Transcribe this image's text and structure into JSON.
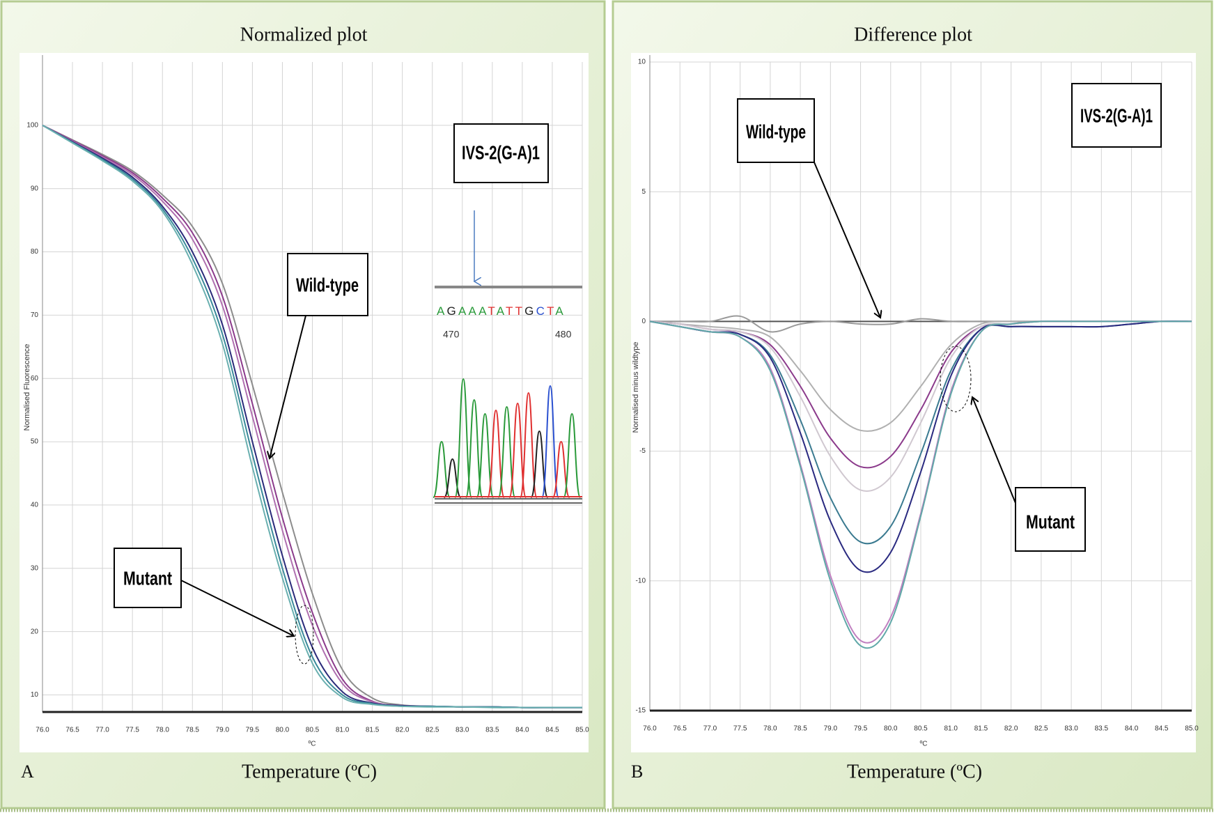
{
  "chart_data": [
    {
      "type": "line",
      "title": "Normalized plot",
      "panel_label": "A",
      "x_label": "Temperature (ºC)",
      "x_unit_label": "ºC",
      "y_label": "Normalised Fluorescence",
      "annotation_wild_type": "Wild-type",
      "annotation_mutant": "Mutant",
      "mutation": "IVS-2(G-A)1",
      "sequence": "AGAAATATTGCTA",
      "sequence_positions": [
        470,
        480
      ],
      "x": [
        76,
        76.5,
        77,
        77.5,
        78,
        78.5,
        79,
        79.5,
        80,
        80.5,
        81,
        81.5,
        82,
        82.5,
        83,
        83.5,
        84,
        84.5,
        85
      ],
      "xlim": [
        76,
        85
      ],
      "xticks": [
        {
          "value": 76,
          "label": "76.0"
        },
        {
          "value": 76.5,
          "label": "76.5"
        },
        {
          "value": 77,
          "label": "77.0"
        },
        {
          "value": 77.5,
          "label": "77.5"
        },
        {
          "value": 78,
          "label": "78.0"
        },
        {
          "value": 78.5,
          "label": "78.5"
        },
        {
          "value": 79,
          "label": "79.0"
        },
        {
          "value": 79.5,
          "label": "79.5"
        },
        {
          "value": 80,
          "label": "80.0"
        },
        {
          "value": 80.5,
          "label": "80.5"
        },
        {
          "value": 81,
          "label": "81.0"
        },
        {
          "value": 81.5,
          "label": "81.5"
        },
        {
          "value": 82,
          "label": "82.0"
        },
        {
          "value": 82.5,
          "label": "82.5"
        },
        {
          "value": 83,
          "label": "83.0"
        },
        {
          "value": 83.5,
          "label": "83.5"
        },
        {
          "value": 84,
          "label": "84.0"
        },
        {
          "value": 84.5,
          "label": "84.5"
        },
        {
          "value": 85,
          "label": "85.0"
        }
      ],
      "ylim": [
        7.3,
        110
      ],
      "yticks": [
        10,
        20,
        30,
        40,
        50,
        60,
        70,
        80,
        90,
        100
      ],
      "grid": true,
      "series": [
        {
          "color": "#8c8c8c",
          "values": [
            100,
            97.7,
            95.4,
            92.8,
            89,
            84,
            75,
            59,
            42,
            26,
            14,
            9.5,
            8.4,
            8.2,
            8.1,
            8.1,
            8,
            8,
            8
          ]
        },
        {
          "color": "#8b3a8b",
          "values": [
            100,
            97.6,
            95.2,
            92.5,
            88.5,
            83,
            73,
            56,
            38,
            23,
            12.5,
            9,
            8.3,
            8.2,
            8.1,
            8.1,
            8,
            8,
            8
          ]
        },
        {
          "color": "#b070b0",
          "values": [
            100,
            97.5,
            95,
            92.2,
            88,
            82,
            71.5,
            54,
            36,
            21,
            11.8,
            8.9,
            8.3,
            8.2,
            8.1,
            8.1,
            8,
            8,
            8
          ]
        },
        {
          "color": "#2a2a7a",
          "values": [
            100,
            97.4,
            94.8,
            91.8,
            87.2,
            80,
            68.5,
            50,
            32,
            17.5,
            10.5,
            8.7,
            8.3,
            8.2,
            8.1,
            8.1,
            8,
            8,
            8
          ]
        },
        {
          "color": "#3a8a9a",
          "values": [
            100,
            97.3,
            94.6,
            91.5,
            86.8,
            79,
            67,
            48,
            30,
            16,
            10,
            8.6,
            8.2,
            8.2,
            8.1,
            8.1,
            8,
            8,
            8
          ]
        },
        {
          "color": "#6ab0b0",
          "values": [
            100,
            97.2,
            94.4,
            91.2,
            86.4,
            78,
            65.5,
            46,
            28.5,
            15,
            9.6,
            8.5,
            8.2,
            8.1,
            8.1,
            8,
            8,
            8,
            8
          ]
        }
      ]
    },
    {
      "type": "line",
      "title": "Difference plot",
      "panel_label": "B",
      "x_label": "Temperature (ºC)",
      "x_unit_label": "ºC",
      "y_label": "Normalised minus wildtype",
      "annotation_wild_type": "Wild-type",
      "annotation_mutant": "Mutant",
      "mutation": "IVS-2(G-A)1",
      "x": [
        76,
        76.5,
        77,
        77.5,
        78,
        78.5,
        79,
        79.5,
        80,
        80.5,
        81,
        81.5,
        82,
        82.5,
        83,
        83.5,
        84,
        84.5,
        85
      ],
      "xlim": [
        76,
        85
      ],
      "xticks": [
        {
          "value": 76,
          "label": "76.0"
        },
        {
          "value": 76.5,
          "label": "76.5"
        },
        {
          "value": 77,
          "label": "77.0"
        },
        {
          "value": 77.5,
          "label": "77.5"
        },
        {
          "value": 78,
          "label": "78.0"
        },
        {
          "value": 78.5,
          "label": "78.5"
        },
        {
          "value": 79,
          "label": "79.0"
        },
        {
          "value": 79.5,
          "label": "79.5"
        },
        {
          "value": 80,
          "label": "80.0"
        },
        {
          "value": 80.5,
          "label": "80.5"
        },
        {
          "value": 81,
          "label": "81.0"
        },
        {
          "value": 81.5,
          "label": "81.5"
        },
        {
          "value": 82,
          "label": "82.0"
        },
        {
          "value": 82.5,
          "label": "82.5"
        },
        {
          "value": 83,
          "label": "83.0"
        },
        {
          "value": 83.5,
          "label": "83.5"
        },
        {
          "value": 84,
          "label": "84.0"
        },
        {
          "value": 84.5,
          "label": "84.5"
        },
        {
          "value": 85,
          "label": "85.0"
        }
      ],
      "ylim": [
        -15,
        10
      ],
      "yticks": [
        -15,
        -10,
        -5,
        0,
        5,
        10
      ],
      "grid": true,
      "series": [
        {
          "color": "#555555",
          "values": [
            0,
            0,
            0,
            0,
            0,
            0,
            0,
            0,
            0,
            0,
            0,
            0,
            0,
            0,
            0,
            0,
            0,
            0,
            0
          ]
        },
        {
          "color": "#9a9a9a",
          "values": [
            0,
            0,
            0,
            0.2,
            -0.4,
            -0.1,
            0,
            -0.1,
            -0.1,
            0.1,
            0,
            0,
            0,
            0,
            0,
            0,
            0,
            0,
            0
          ]
        },
        {
          "color": "#b0b0b0",
          "values": [
            0,
            -0.1,
            -0.2,
            -0.3,
            -0.6,
            -1.9,
            -3.4,
            -4.2,
            -3.9,
            -2.5,
            -0.9,
            -0.1,
            0,
            0,
            0,
            0,
            0,
            0,
            0
          ]
        },
        {
          "color": "#8b3a8b",
          "values": [
            0,
            -0.1,
            -0.3,
            -0.4,
            -0.9,
            -2.5,
            -4.5,
            -5.6,
            -5.2,
            -3.4,
            -1.2,
            -0.2,
            -0.1,
            0,
            0,
            0,
            0,
            0,
            0
          ]
        },
        {
          "color": "#d0c8d0",
          "values": [
            0,
            -0.1,
            -0.3,
            -0.4,
            -1,
            -2.9,
            -5.2,
            -6.5,
            -6,
            -3.9,
            -1.4,
            -0.2,
            -0.1,
            0,
            0,
            0,
            0,
            0,
            0
          ]
        },
        {
          "color": "#3a7a90",
          "values": [
            0,
            -0.2,
            -0.4,
            -0.5,
            -1.3,
            -3.8,
            -6.8,
            -8.5,
            -7.9,
            -5.1,
            -1.9,
            -0.3,
            -0.2,
            -0.2,
            -0.2,
            -0.2,
            -0.1,
            0,
            0
          ]
        },
        {
          "color": "#2a2a80",
          "values": [
            0,
            -0.2,
            -0.4,
            -0.5,
            -1.4,
            -4.3,
            -7.7,
            -9.6,
            -8.9,
            -5.8,
            -2.1,
            -0.3,
            -0.2,
            -0.2,
            -0.2,
            -0.2,
            -0.1,
            0,
            0
          ]
        },
        {
          "color": "#c080c0",
          "values": [
            0,
            -0.2,
            -0.4,
            -0.6,
            -1.8,
            -5.5,
            -9.8,
            -12.3,
            -11.4,
            -7.4,
            -2.7,
            -0.4,
            -0.1,
            0,
            0,
            0,
            0,
            0,
            0
          ]
        },
        {
          "color": "#60a8a8",
          "values": [
            0,
            -0.2,
            -0.4,
            -0.6,
            -1.9,
            -5.6,
            -10,
            -12.5,
            -11.6,
            -7.5,
            -2.8,
            -0.4,
            -0.1,
            0,
            0,
            0,
            0,
            0,
            0
          ]
        }
      ]
    }
  ]
}
